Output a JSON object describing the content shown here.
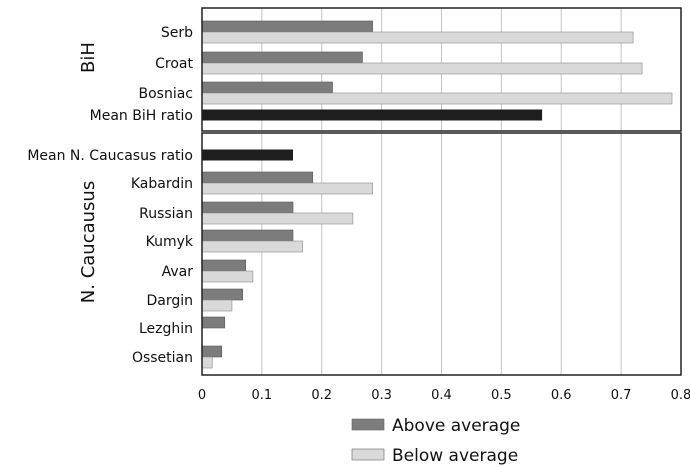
{
  "chart_data": {
    "type": "bar",
    "orientation": "horizontal",
    "xlim": [
      0,
      0.8
    ],
    "xticks": [
      "0",
      "0.1",
      "0.2",
      "0.3",
      "0.4",
      "0.5",
      "0.6",
      "0.7",
      "0.8"
    ],
    "grid": "vertical",
    "groups": [
      {
        "label": "BiH",
        "categories": [
          {
            "name": "Serb",
            "above": 0.285,
            "below": 0.72
          },
          {
            "name": "Croat",
            "above": 0.268,
            "below": 0.735
          },
          {
            "name": "Bosniac",
            "above": 0.218,
            "below": 0.785
          },
          {
            "name": "Mean BiH ratio",
            "mean": 0.568
          }
        ]
      },
      {
        "label": "N. Caucausus",
        "categories": [
          {
            "name": "Mean N. Caucasus ratio",
            "mean": 0.152
          },
          {
            "name": "Kabardin",
            "above": 0.185,
            "below": 0.285
          },
          {
            "name": "Russian",
            "above": 0.152,
            "below": 0.252
          },
          {
            "name": "Kumyk",
            "above": 0.152,
            "below": 0.168
          },
          {
            "name": "Avar",
            "above": 0.073,
            "below": 0.085
          },
          {
            "name": "Dargin",
            "above": 0.068,
            "below": 0.05
          },
          {
            "name": "Lezghin",
            "above": 0.038
          },
          {
            "name": "Ossetian",
            "above": 0.033,
            "below": 0.017
          }
        ]
      }
    ],
    "legend": {
      "position": "bottom",
      "entries": [
        {
          "name": "Above average",
          "color": "#7c7c7c"
        },
        {
          "name": "Below average",
          "color": "#d9d9d9"
        }
      ]
    },
    "colors": {
      "above": "#7c7c7c",
      "below": "#d9d9d9",
      "mean": "#1e1e1e"
    }
  }
}
